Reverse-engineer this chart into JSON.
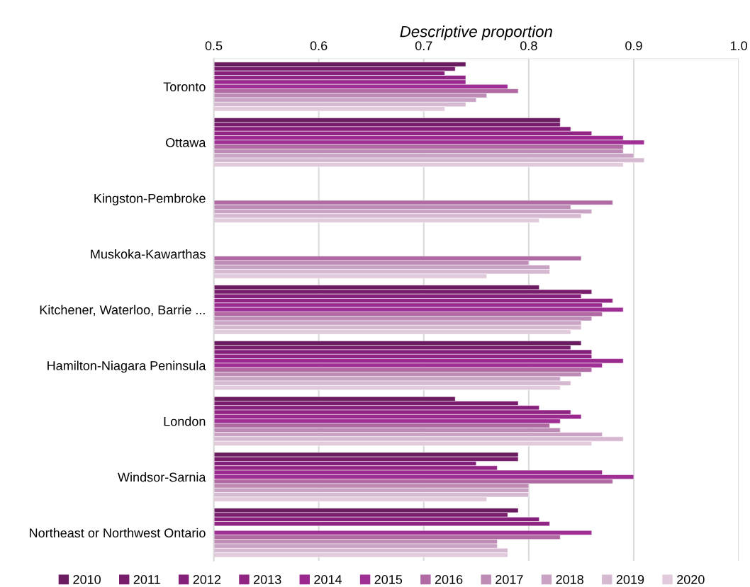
{
  "chart_data": {
    "type": "bar",
    "orientation": "horizontal",
    "xlabel": "Descriptive proportion",
    "categories": [
      "Toronto",
      "Ottawa",
      "Kingston-Pembroke",
      "Muskoka-Kawarthas",
      "Kitchener, Waterloo, Barrie ...",
      "Hamilton-Niagara Peninsula",
      "London",
      "Windsor-Sarnia",
      "Northeast or Northwest Ontario"
    ],
    "xlim": [
      0.5,
      1.0
    ],
    "xticks": [
      0.5,
      0.6,
      0.7,
      0.8,
      0.9,
      {
        "value": 1,
        "label": "1.0"
      }
    ],
    "grid": "x",
    "legend": "bottom",
    "series": [
      {
        "name": "2010",
        "color": "#6b1b5f",
        "values": [
          0.74,
          0.83,
          null,
          null,
          0.81,
          0.85,
          0.73,
          0.79,
          0.79
        ]
      },
      {
        "name": "2011",
        "color": "#781d6b",
        "values": [
          0.73,
          0.83,
          null,
          null,
          0.86,
          0.84,
          0.79,
          0.79,
          0.78
        ]
      },
      {
        "name": "2012",
        "color": "#85207a",
        "values": [
          0.72,
          0.84,
          null,
          null,
          0.85,
          0.86,
          0.81,
          0.75,
          0.81
        ]
      },
      {
        "name": "2013",
        "color": "#912483",
        "values": [
          0.74,
          0.86,
          null,
          null,
          0.88,
          0.86,
          0.84,
          0.77,
          0.82
        ]
      },
      {
        "name": "2014",
        "color": "#9a288e",
        "values": [
          0.74,
          0.89,
          null,
          null,
          0.87,
          0.89,
          0.85,
          0.87,
          null
        ]
      },
      {
        "name": "2015",
        "color": "#a02f95",
        "values": [
          0.78,
          0.91,
          null,
          null,
          0.89,
          0.87,
          0.83,
          0.9,
          0.86
        ]
      },
      {
        "name": "2016",
        "color": "#b069a3",
        "values": [
          0.79,
          0.89,
          0.88,
          0.85,
          0.87,
          0.86,
          0.82,
          0.88,
          0.83
        ]
      },
      {
        "name": "2017",
        "color": "#bd8bb5",
        "values": [
          0.76,
          0.89,
          0.84,
          0.8,
          0.86,
          0.85,
          0.83,
          0.8,
          0.77
        ]
      },
      {
        "name": "2018",
        "color": "#c9a3c3",
        "values": [
          0.75,
          0.9,
          0.86,
          0.82,
          0.85,
          0.83,
          0.87,
          0.8,
          0.77
        ]
      },
      {
        "name": "2019",
        "color": "#d5b9d0",
        "values": [
          0.74,
          0.91,
          0.85,
          0.82,
          0.85,
          0.84,
          0.89,
          0.8,
          0.78
        ]
      },
      {
        "name": "2020",
        "color": "#e0cadb",
        "values": [
          0.72,
          0.89,
          0.81,
          0.76,
          0.84,
          0.83,
          0.86,
          0.76,
          0.78
        ]
      }
    ]
  }
}
